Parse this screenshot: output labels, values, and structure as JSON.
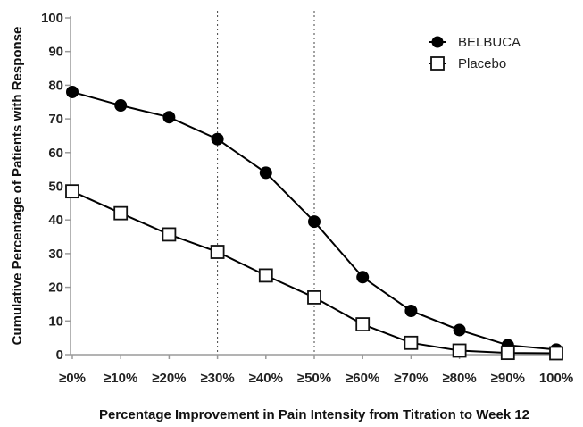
{
  "chart_data": {
    "type": "line",
    "title": "",
    "xlabel": "Percentage Improvement in Pain Intensity from Titration to Week 12",
    "ylabel": "Cumulative Percentage of Patients with Response",
    "categories": [
      "≥0%",
      "≥10%",
      "≥20%",
      "≥30%",
      "≥40%",
      "≥50%",
      "≥60%",
      "≥70%",
      "≥80%",
      "≥90%",
      "100%"
    ],
    "ylim": [
      0,
      100
    ],
    "yticks": [
      "0",
      "10",
      "20",
      "30",
      "40",
      "50",
      "60",
      "70",
      "80",
      "90",
      "100"
    ],
    "ytick_values": [
      0,
      10,
      20,
      30,
      40,
      50,
      60,
      70,
      80,
      90,
      100
    ],
    "reference_lines": [
      {
        "category": "≥30%",
        "style": "dotted"
      },
      {
        "category": "≥50%",
        "style": "dotted"
      }
    ],
    "grid": false,
    "legend_position": "top-right",
    "series": [
      {
        "name": "BELBUCA",
        "marker": "filled-circle",
        "color": "#000000",
        "values": [
          78,
          74,
          70.5,
          64,
          54,
          39.5,
          23,
          13,
          7.3,
          2.8,
          1.5
        ]
      },
      {
        "name": "Placebo",
        "marker": "open-square",
        "color": "#000000",
        "values": [
          48.5,
          42,
          35.7,
          30.5,
          23.5,
          17,
          9,
          3.5,
          1.2,
          0.5,
          0.4
        ]
      }
    ]
  }
}
